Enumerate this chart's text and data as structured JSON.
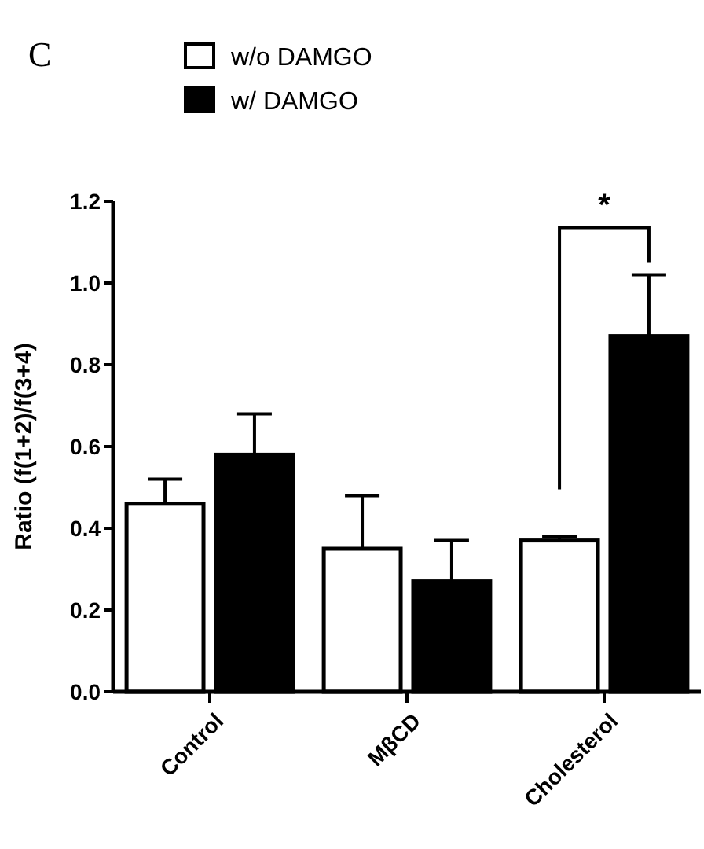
{
  "chart_data": {
    "type": "bar",
    "title": "C",
    "ylabel": "Ratio (f(1+2)/f(3+4)",
    "categories": [
      "Control",
      "MβCD",
      "Cholesterol"
    ],
    "series": [
      {
        "name": "w/o DAMGO",
        "color": "#ffffff",
        "values": [
          0.46,
          0.35,
          0.37
        ],
        "errors": [
          [
            0.46,
            0.52
          ],
          [
            0.35,
            0.48
          ],
          [
            0.37,
            0.38
          ]
        ]
      },
      {
        "name": "w/ DAMGO",
        "color": "#000000",
        "values": [
          0.58,
          0.27,
          0.87
        ],
        "errors": [
          [
            0.58,
            0.68
          ],
          [
            0.27,
            0.37
          ],
          [
            0.87,
            1.02
          ]
        ]
      }
    ],
    "ylim": [
      0,
      1.2
    ],
    "yticks": [
      {
        "value": 0,
        "label": "0.0"
      },
      0.2,
      0.4,
      0.6,
      0.8,
      {
        "value": 1,
        "label": "1.0"
      },
      1.2
    ],
    "annotations": [
      "*"
    ],
    "legend": "top",
    "grid": false
  }
}
